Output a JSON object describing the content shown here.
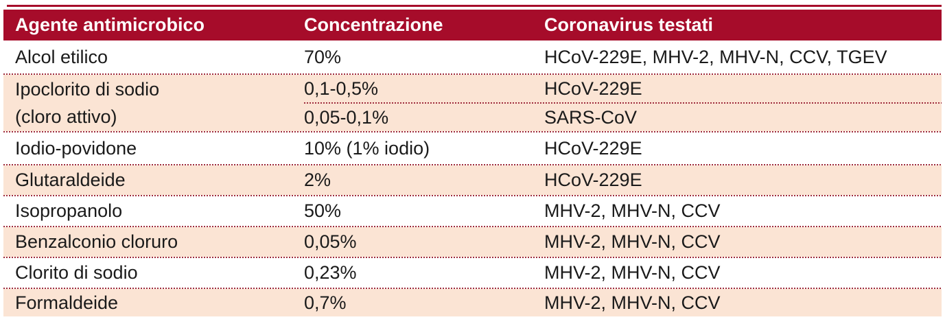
{
  "colors": {
    "header_bg": "#A60C2A",
    "header_text": "#FFFFFF",
    "row_alt_bg": "#FBE4D4",
    "row_bg": "#FFFFFF",
    "separator_dots": "#9E2B3C",
    "body_text": "#1A1A1A"
  },
  "table": {
    "columns": {
      "agent": "Agente antimicrobico",
      "concentration": "Concentrazione",
      "viruses": "Coronavirus testati"
    },
    "rows": [
      {
        "agent": "Alcol etilico",
        "concentration": "70%",
        "viruses": "HCoV-229E, MHV-2, MHV-N, CCV, TGEV"
      },
      {
        "agent": "Ipoclorito di sodio\n(cloro attivo)",
        "sub_rows": [
          {
            "concentration": "0,1-0,5%",
            "viruses": "HCoV-229E"
          },
          {
            "concentration": "0,05-0,1%",
            "viruses": "SARS-CoV"
          }
        ]
      },
      {
        "agent": "Iodio-povidone",
        "concentration": "10% (1% iodio)",
        "viruses": "HCoV-229E"
      },
      {
        "agent": "Glutaraldeide",
        "concentration": "2%",
        "viruses": "HCoV-229E"
      },
      {
        "agent": "Isopropanolo",
        "concentration": "50%",
        "viruses": "MHV-2, MHV-N, CCV"
      },
      {
        "agent": "Benzalconio cloruro",
        "concentration": "0,05%",
        "viruses": "MHV-2, MHV-N, CCV"
      },
      {
        "agent": "Clorito di sodio",
        "concentration": "0,23%",
        "viruses": "MHV-2, MHV-N, CCV"
      },
      {
        "agent": "Formaldeide",
        "concentration": "0,7%",
        "viruses": "MHV-2, MHV-N, CCV"
      }
    ]
  }
}
